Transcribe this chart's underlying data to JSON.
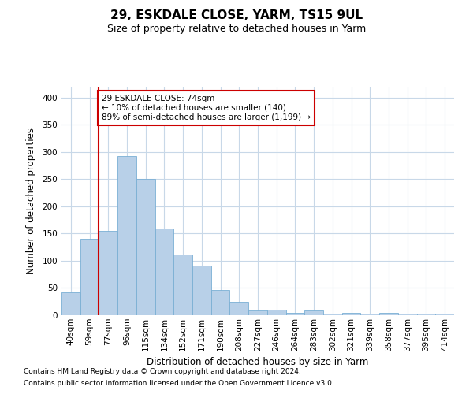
{
  "title1": "29, ESKDALE CLOSE, YARM, TS15 9UL",
  "title2": "Size of property relative to detached houses in Yarm",
  "xlabel": "Distribution of detached houses by size in Yarm",
  "ylabel": "Number of detached properties",
  "categories": [
    "40sqm",
    "59sqm",
    "77sqm",
    "96sqm",
    "115sqm",
    "134sqm",
    "152sqm",
    "171sqm",
    "190sqm",
    "208sqm",
    "227sqm",
    "246sqm",
    "264sqm",
    "283sqm",
    "302sqm",
    "321sqm",
    "339sqm",
    "358sqm",
    "377sqm",
    "395sqm",
    "414sqm"
  ],
  "values": [
    42,
    140,
    155,
    293,
    251,
    160,
    112,
    91,
    46,
    24,
    8,
    10,
    4,
    8,
    3,
    4,
    3,
    4,
    3,
    3,
    3
  ],
  "bar_color": "#b8d0e8",
  "bar_edge_color": "#7aafd4",
  "annotation_text": "29 ESKDALE CLOSE: 74sqm\n← 10% of detached houses are smaller (140)\n89% of semi-detached houses are larger (1,199) →",
  "annotation_box_facecolor": "#ffffff",
  "annotation_box_edgecolor": "#cc0000",
  "vline_color": "#cc0000",
  "vline_x": 1.5,
  "ylim": [
    0,
    420
  ],
  "yticks": [
    0,
    50,
    100,
    150,
    200,
    250,
    300,
    350,
    400
  ],
  "footer1": "Contains HM Land Registry data © Crown copyright and database right 2024.",
  "footer2": "Contains public sector information licensed under the Open Government Licence v3.0.",
  "background_color": "#ffffff",
  "grid_color": "#c8d8e8",
  "title1_fontsize": 11,
  "title2_fontsize": 9,
  "xlabel_fontsize": 8.5,
  "ylabel_fontsize": 8.5,
  "tick_fontsize": 7.5,
  "annotation_fontsize": 7.5,
  "footer_fontsize": 6.5
}
